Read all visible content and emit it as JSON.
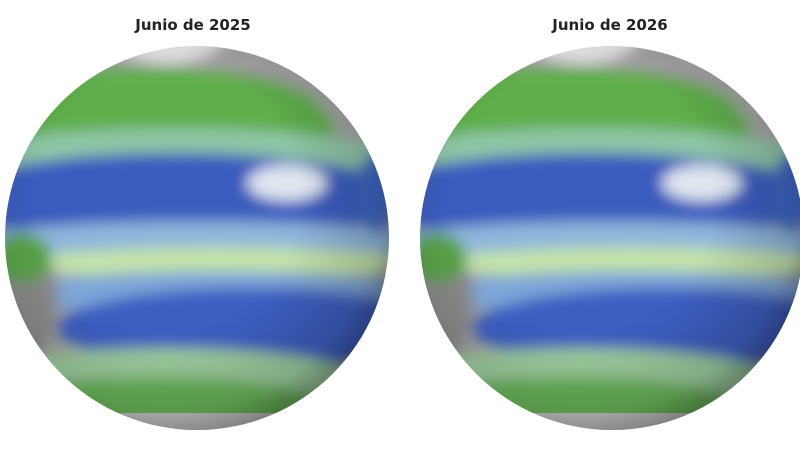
{
  "panels": [
    {
      "title": "Junio de 2025"
    },
    {
      "title": "Junio de 2026"
    }
  ]
}
